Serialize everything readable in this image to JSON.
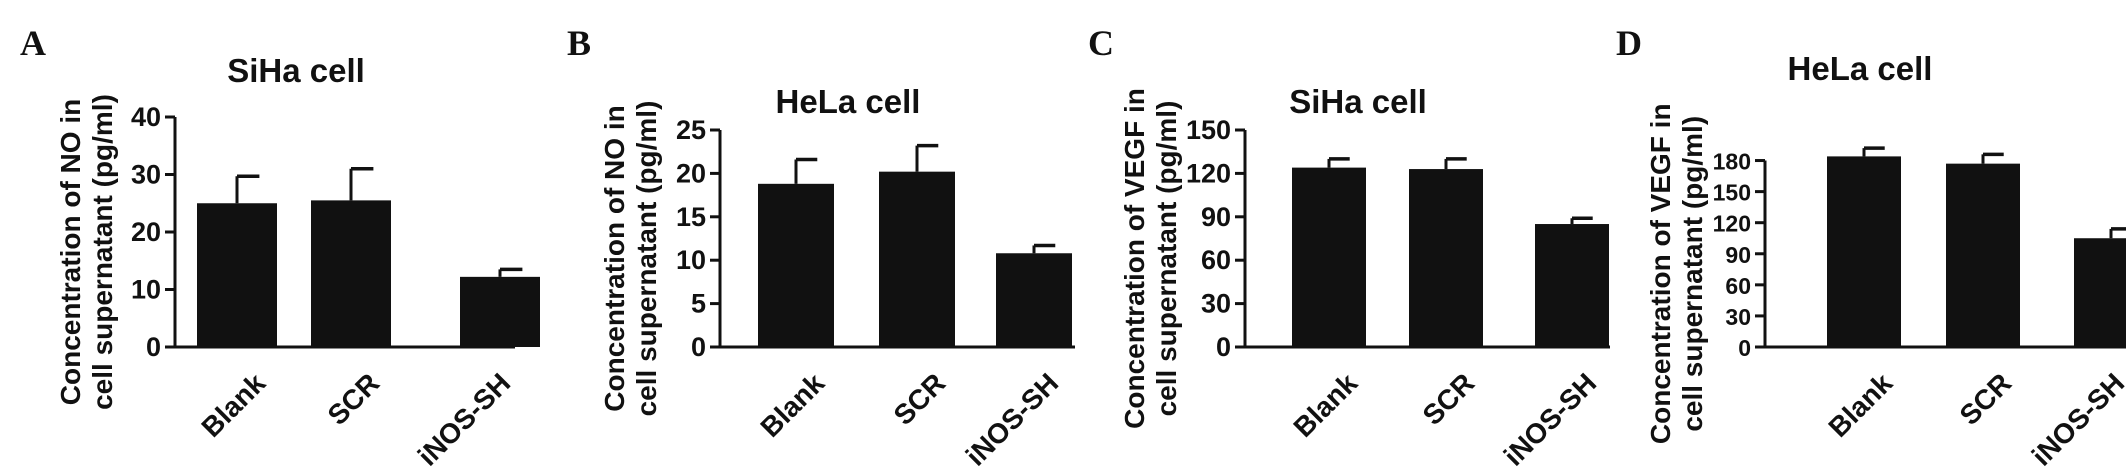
{
  "colors": {
    "bar": "#111111",
    "axis": "#111111"
  },
  "chart_data": [
    {
      "panel": "A",
      "type": "bar",
      "title": "SiHa cell",
      "ylabel_line1": "Concentration of NO in",
      "ylabel_line2": "cell supernatant (pg/ml)",
      "categories": [
        "Blank",
        "SCR",
        "iNOS-SH"
      ],
      "values": [
        25,
        25.5,
        12.2
      ],
      "errors": [
        4.7,
        5.5,
        1.3
      ],
      "ylim": [
        0,
        40
      ],
      "yticks": [
        0,
        10,
        20,
        30,
        40
      ]
    },
    {
      "panel": "B",
      "type": "bar",
      "title": "HeLa cell",
      "ylabel_line1": "Concentration of NO in",
      "ylabel_line2": "cell supernatant (pg/ml)",
      "categories": [
        "Blank",
        "SCR",
        "iNOS-SH"
      ],
      "values": [
        18.8,
        20.2,
        10.8
      ],
      "errors": [
        2.8,
        3.0,
        0.9
      ],
      "ylim": [
        0,
        25
      ],
      "yticks": [
        0,
        5,
        10,
        15,
        20,
        25
      ]
    },
    {
      "panel": "C",
      "type": "bar",
      "title": "SiHa cell",
      "ylabel_line1": "Concentration of VEGF in",
      "ylabel_line2": "cell supernatant (pg/ml)",
      "categories": [
        "Blank",
        "SCR",
        "iNOS-SH"
      ],
      "values": [
        124,
        123,
        85
      ],
      "errors": [
        6,
        7,
        4
      ],
      "ylim": [
        0,
        150
      ],
      "yticks": [
        0,
        30,
        60,
        90,
        120,
        150
      ]
    },
    {
      "panel": "D",
      "type": "bar",
      "title": "HeLa cell",
      "ylabel_line1": "Concentration of VEGF in",
      "ylabel_line2": "cell supernatant (pg/ml)",
      "categories": [
        "Blank",
        "SCR",
        "iNOS-SH"
      ],
      "values": [
        184,
        177,
        105
      ],
      "errors": [
        8,
        9,
        9
      ],
      "ylim": [
        0,
        195
      ],
      "yticks": [
        0,
        30,
        60,
        90,
        120,
        150,
        180
      ]
    }
  ]
}
